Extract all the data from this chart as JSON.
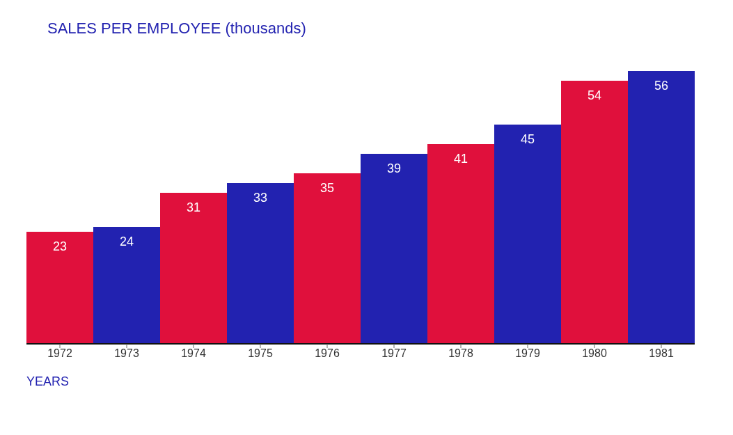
{
  "chart_data": {
    "type": "bar",
    "title": "SALES PER EMPLOYEE (thousands)",
    "xlabel": "YEARS",
    "categories": [
      "1972",
      "1973",
      "1974",
      "1975",
      "1976",
      "1977",
      "1978",
      "1979",
      "1980",
      "1981"
    ],
    "values": [
      23,
      24,
      31,
      33,
      35,
      39,
      41,
      45,
      54,
      56
    ],
    "colors": [
      "#e0103c",
      "#2222b0",
      "#e0103c",
      "#2222b0",
      "#e0103c",
      "#2222b0",
      "#e0103c",
      "#2222b0",
      "#e0103c",
      "#2222b0"
    ],
    "data_labels": true
  }
}
